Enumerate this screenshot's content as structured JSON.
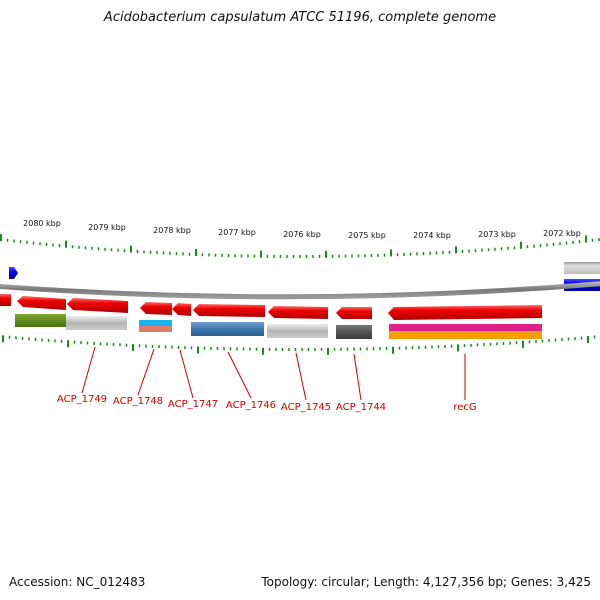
{
  "title": "Acidobacterium capsulatum ATCC 51196, complete genome",
  "footer": {
    "accession": "Accession: NC_012483",
    "summary": "Topology: circular; Length: 4,127,356 bp; Genes: 3,425"
  },
  "scale": {
    "labels": [
      "2080 kbp",
      "2079 kbp",
      "2078 kbp",
      "2077 kbp",
      "2076 kbp",
      "2075 kbp",
      "2074 kbp",
      "2073 kbp",
      "2072 kbp"
    ]
  },
  "genes": [
    {
      "label": "ACP_1749"
    },
    {
      "label": "ACP_1748"
    },
    {
      "label": "ACP_1747"
    },
    {
      "label": "ACP_1746"
    },
    {
      "label": "ACP_1745"
    },
    {
      "label": "ACP_1744"
    },
    {
      "label": "recG"
    }
  ],
  "colors": {
    "gene_red": "#ee0000",
    "forward_blue": "#0000ee",
    "label_red": "#cc0000",
    "backbone_gray": "#888888",
    "tick_green": "#1e8a1e",
    "olive": "#5f8a1a",
    "steel_blue": "#3f78b0",
    "cyan": "#19b4f0",
    "salmon": "#e07a6a",
    "dark_gray": "#555555",
    "light_gray": "#bbbbbb",
    "magenta": "#e0208c",
    "orange": "#f0a000"
  }
}
